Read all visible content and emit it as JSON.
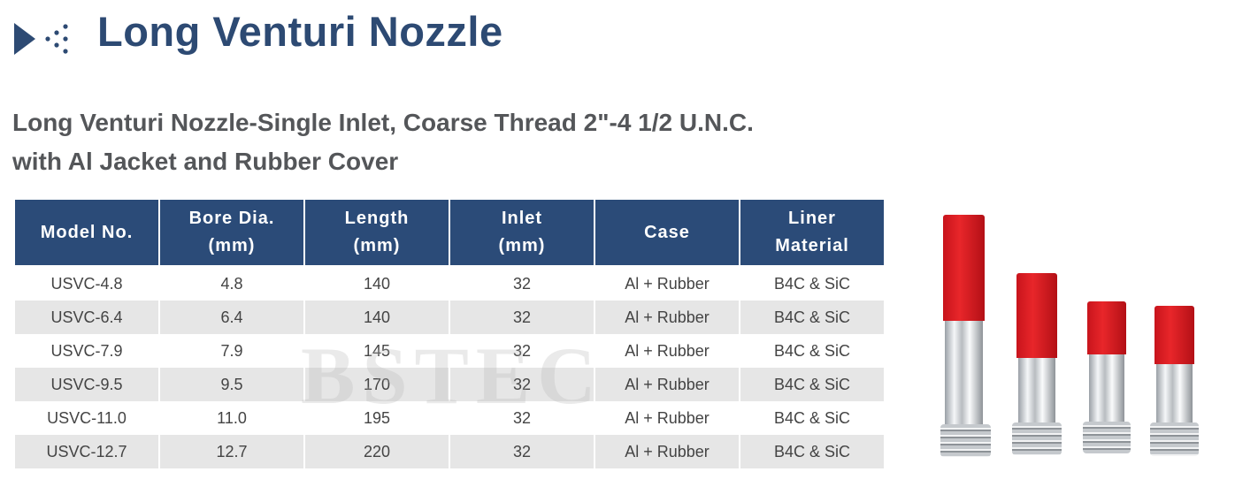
{
  "header": {
    "icon": "play-dots-icon",
    "title": "Long Venturi Nozzle",
    "color": "#2d4a73"
  },
  "subtitle": {
    "line1": "Long Venturi Nozzle-Single Inlet, Coarse Thread 2\"-4 1/2 U.N.C.",
    "line2": "with Al Jacket and Rubber Cover"
  },
  "table": {
    "header_color": "#2b4b78",
    "columns": [
      {
        "line1": "Model No.",
        "line2": ""
      },
      {
        "line1": "Bore Dia.",
        "line2": "(mm)"
      },
      {
        "line1": "Length",
        "line2": "(mm)"
      },
      {
        "line1": "Inlet",
        "line2": "(mm)"
      },
      {
        "line1": "Case",
        "line2": ""
      },
      {
        "line1": "Liner",
        "line2": "Material"
      }
    ],
    "rows": [
      [
        "USVC-4.8",
        "4.8",
        "140",
        "32",
        "Al + Rubber",
        "B4C & SiC"
      ],
      [
        "USVC-6.4",
        "6.4",
        "140",
        "32",
        "Al + Rubber",
        "B4C & SiC"
      ],
      [
        "USVC-7.9",
        "7.9",
        "145",
        "32",
        "Al + Rubber",
        "B4C & SiC"
      ],
      [
        "USVC-9.5",
        "9.5",
        "170",
        "32",
        "Al + Rubber",
        "B4C & SiC"
      ],
      [
        "USVC-11.0",
        "11.0",
        "195",
        "32",
        "Al + Rubber",
        "B4C & SiC"
      ],
      [
        "USVC-12.7",
        "12.7",
        "220",
        "32",
        "Al + Rubber",
        "B4C & SiC"
      ]
    ]
  },
  "watermark": "BSTEC",
  "product_image": "venturi-nozzles-photo"
}
